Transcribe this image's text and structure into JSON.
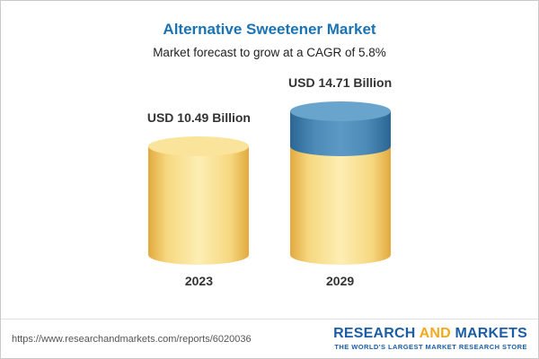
{
  "header": {
    "title": "Alternative Sweetener Market",
    "subtitle": "Market forecast to grow at a CAGR of 5.8%"
  },
  "chart_data": {
    "type": "bar",
    "categories": [
      "2023",
      "2029"
    ],
    "values": [
      10.49,
      14.71
    ],
    "value_labels": [
      "USD 10.49 Billion",
      "USD 14.71 Billion"
    ],
    "unit": "USD Billion",
    "title": "Alternative Sweetener Market",
    "subtitle": "Market forecast to grow at a CAGR of 5.8%",
    "cagr": "5.8%",
    "ylim": [
      0,
      16
    ],
    "legend": "none",
    "grid": false,
    "colors": {
      "bar_2023": "#f5cf6e",
      "bar_2029_base": "#f5cf6e",
      "bar_2029_growth": "#3d7aa5",
      "title_color": "#1a73b5"
    }
  },
  "footer": {
    "url": "https://www.researchandmarkets.com/reports/6020036",
    "logo": {
      "research": "RESEARCH ",
      "and": "AND",
      "markets": " MARKETS",
      "tagline": "THE WORLD'S LARGEST MARKET RESEARCH STORE"
    }
  }
}
